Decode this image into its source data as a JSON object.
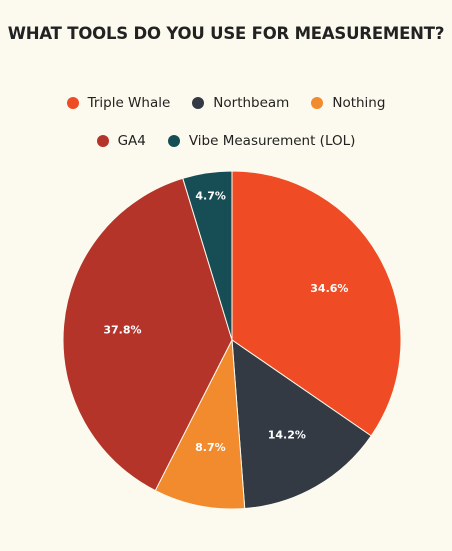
{
  "chart_data": {
    "type": "pie",
    "title": "WHAT TOOLS DO YOU USE FOR MEASUREMENT?",
    "legend": {
      "placement": "top",
      "rows": [
        [
          "Triple Whale",
          "Northbeam",
          "Nothing"
        ],
        [
          "GA4",
          "Vibe Measurement (LOL)"
        ]
      ]
    },
    "slices": [
      {
        "label": "Triple Whale",
        "value": 34.6,
        "display": "34.6%",
        "color": "#ef4b24"
      },
      {
        "label": "Northbeam",
        "value": 14.2,
        "display": "14.2%",
        "color": "#333a44"
      },
      {
        "label": "Nothing",
        "value": 8.7,
        "display": "8.7%",
        "color": "#f28a2e"
      },
      {
        "label": "GA4",
        "value": 37.8,
        "display": "37.8%",
        "color": "#b5342a"
      },
      {
        "label": "Vibe Measurement (LOL)",
        "value": 4.7,
        "display": "4.7%",
        "color": "#174e55"
      }
    ]
  }
}
